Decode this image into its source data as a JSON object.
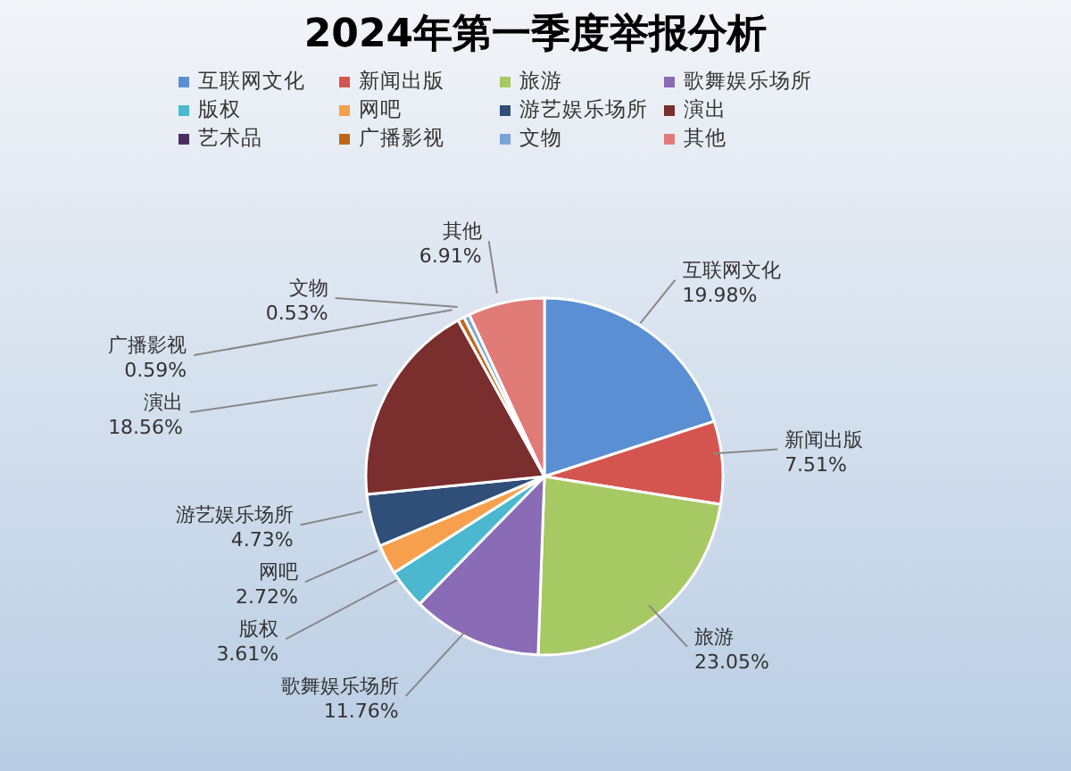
{
  "chart_data": {
    "type": "pie",
    "title": "2024年第一季度举报分析",
    "categories": [
      "互联网文化",
      "新闻出版",
      "旅游",
      "歌舞娱乐场所",
      "版权",
      "网吧",
      "游艺娱乐场所",
      "演出",
      "艺术品",
      "广播影视",
      "文物",
      "其他"
    ],
    "values": [
      19.98,
      7.51,
      23.05,
      11.76,
      3.61,
      2.72,
      4.73,
      18.56,
      null,
      0.59,
      0.53,
      6.91
    ],
    "value_labels": [
      "19.98%",
      "7.51%",
      "23.05%",
      "11.76%",
      "3.61%",
      "2.72%",
      "4.73%",
      "18.56%",
      null,
      "0.59%",
      "0.53%",
      "6.91%"
    ],
    "colors": [
      "#5b8fd4",
      "#d4554f",
      "#a6c964",
      "#8a6bb5",
      "#4bb8d0",
      "#f6a04d",
      "#2f4e78",
      "#7b2e2e",
      "#4a2e5e",
      "#c0661a",
      "#7ba4d8",
      "#e07b78"
    ],
    "legend": "top"
  }
}
